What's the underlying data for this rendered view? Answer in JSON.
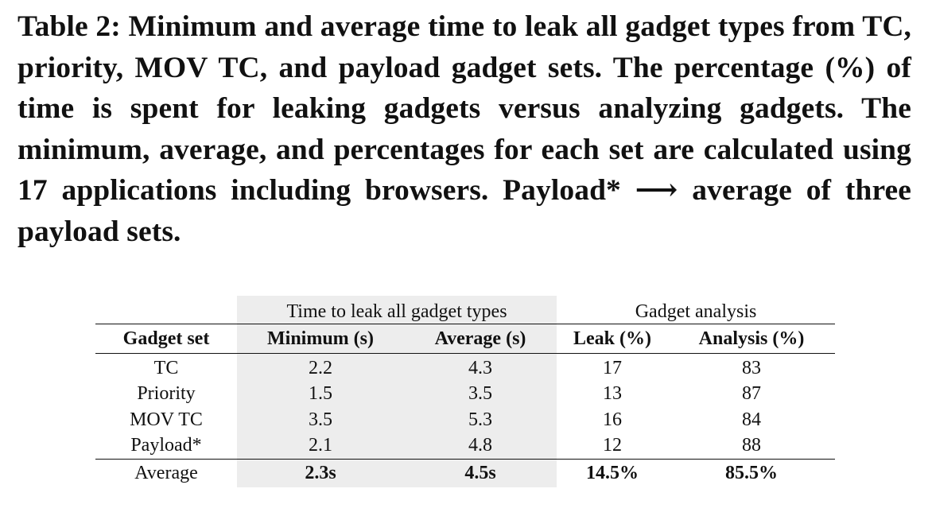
{
  "caption": "Table 2: Minimum and average time to leak all gadget types from TC, priority, MOV TC, and payload gadget sets. The percentage (%) of time is spent for leaking gadgets versus analyzing gadgets. The minimum, average, and percentages for each set are calculated using 17 applications including browsers. Payload* ⟶ average of three payload sets.",
  "table": {
    "group_headers": {
      "time": "Time to leak all gadget types",
      "analysis": "Gadget analysis"
    },
    "columns": [
      "Gadget set",
      "Minimum (s)",
      "Average (s)",
      "Leak (%)",
      "Analysis (%)"
    ],
    "rows": [
      {
        "set": "TC",
        "min": "2.2",
        "avg": "4.3",
        "leak": "17",
        "analysis": "83"
      },
      {
        "set": "Priority",
        "min": "1.5",
        "avg": "3.5",
        "leak": "13",
        "analysis": "87"
      },
      {
        "set": "MOV TC",
        "min": "3.5",
        "avg": "5.3",
        "leak": "16",
        "analysis": "84"
      },
      {
        "set": "Payload*",
        "min": "2.1",
        "avg": "4.8",
        "leak": "12",
        "analysis": "88"
      }
    ],
    "average_row": {
      "set": "Average",
      "min": "2.3s",
      "avg": "4.5s",
      "leak": "14.5%",
      "analysis": "85.5%"
    }
  },
  "colors": {
    "shade": "#ededed",
    "text": "#111111"
  }
}
